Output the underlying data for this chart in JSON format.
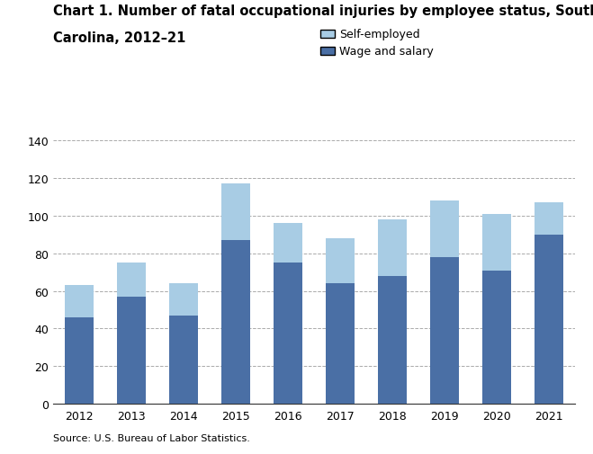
{
  "years": [
    2012,
    2013,
    2014,
    2015,
    2016,
    2017,
    2018,
    2019,
    2020,
    2021
  ],
  "wage_and_salary": [
    46,
    57,
    47,
    87,
    75,
    64,
    68,
    78,
    71,
    90
  ],
  "self_employed": [
    17,
    18,
    17,
    30,
    21,
    24,
    30,
    30,
    30,
    17
  ],
  "wage_color": "#4a6fa5",
  "self_color": "#a8cce4",
  "title_line1": "Chart 1. Number of fatal occupational injuries by employee status, South",
  "title_line2": "Carolina, 2012–21",
  "legend_self": "Self-employed",
  "legend_wage": "Wage and salary",
  "source": "Source: U.S. Bureau of Labor Statistics.",
  "ylim": [
    0,
    140
  ],
  "yticks": [
    0,
    20,
    40,
    60,
    80,
    100,
    120,
    140
  ],
  "title_fontsize": 10.5,
  "legend_fontsize": 9,
  "tick_fontsize": 9,
  "source_fontsize": 8,
  "bar_width": 0.55
}
